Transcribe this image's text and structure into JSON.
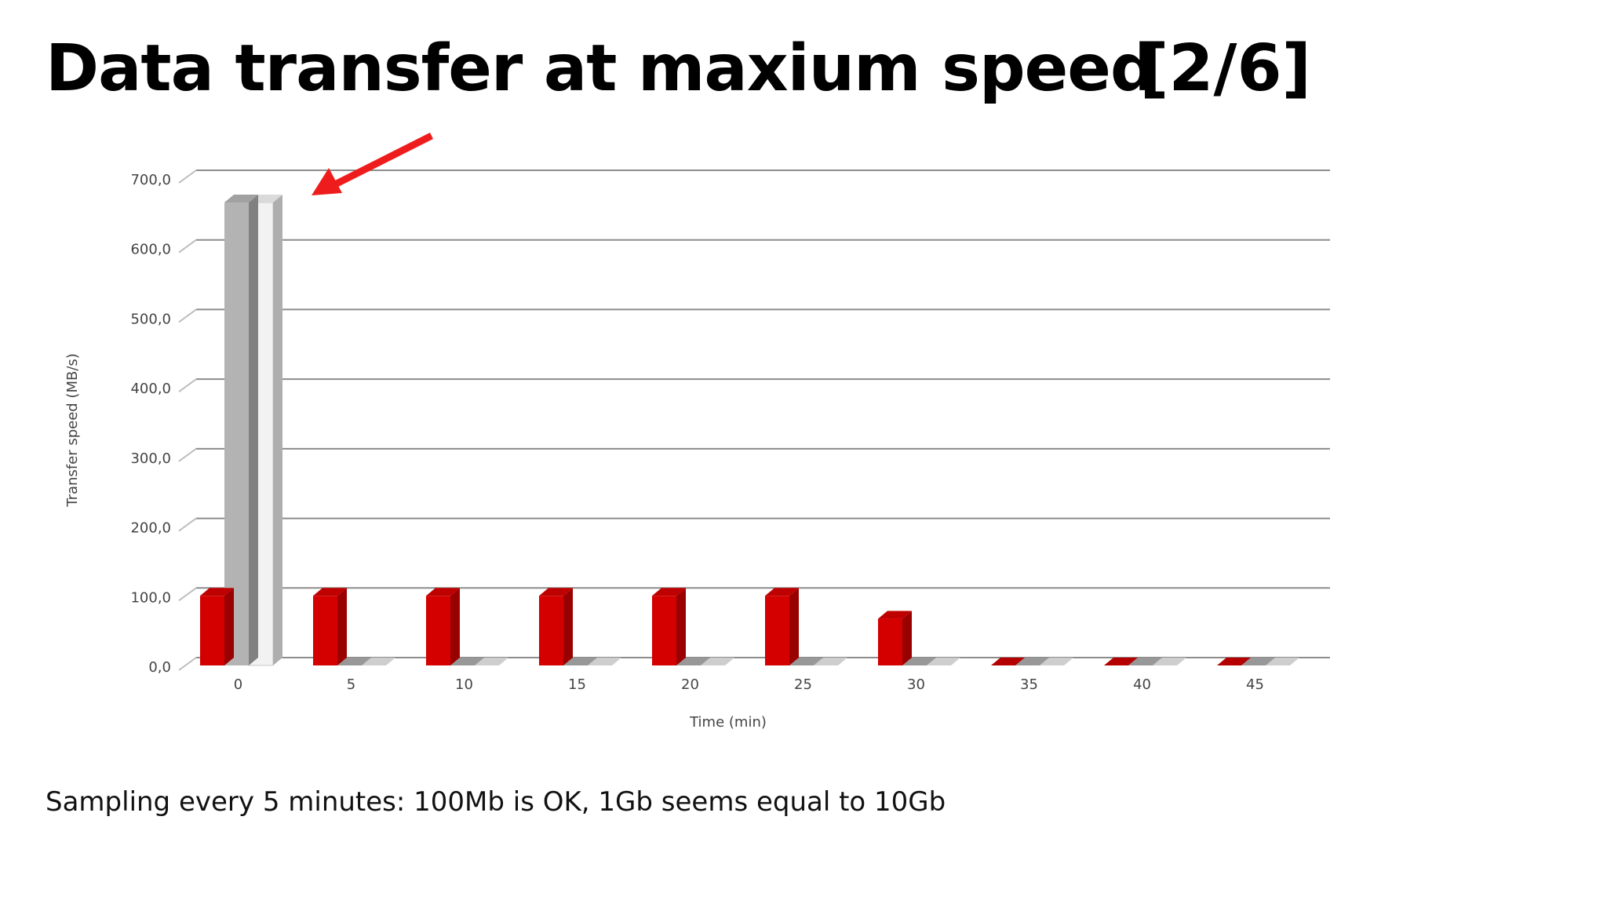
{
  "slide": {
    "title": "Data transfer at maxium speed",
    "counter": "[2/6]",
    "caption": "Sampling every 5 minutes: 100Mb is OK, 1Gb seems equal to 10Gb"
  },
  "colors": {
    "series_1": "#d40000",
    "series_2": "#b3b3b3",
    "series_3": "#f2f2f2",
    "arrow": "#ee1c1c",
    "grid": "#8c8c8c"
  },
  "icons": {
    "annotation": "red-arrow-icon"
  },
  "chart_data": {
    "type": "bar",
    "categories": [
      "0",
      "5",
      "10",
      "15",
      "20",
      "25",
      "30",
      "35",
      "40",
      "45"
    ],
    "series": [
      {
        "values": [
          100,
          100,
          100,
          100,
          100,
          100,
          67,
          0,
          0,
          0
        ]
      },
      {
        "values": [
          665,
          0,
          0,
          0,
          0,
          0,
          0,
          0,
          0,
          0
        ]
      },
      {
        "values": [
          665,
          0,
          0,
          0,
          0,
          0,
          0,
          0,
          0,
          0
        ]
      }
    ],
    "xlabel": "Time (min)",
    "ylabel": "Transfer speed (MB/s)",
    "ylim": [
      0,
      700
    ],
    "yticks": [
      "0,0",
      "100,0",
      "200,0",
      "300,0",
      "400,0",
      "500,0",
      "600,0",
      "700,0"
    ],
    "grid": true,
    "legend": "none",
    "style": "3d"
  }
}
